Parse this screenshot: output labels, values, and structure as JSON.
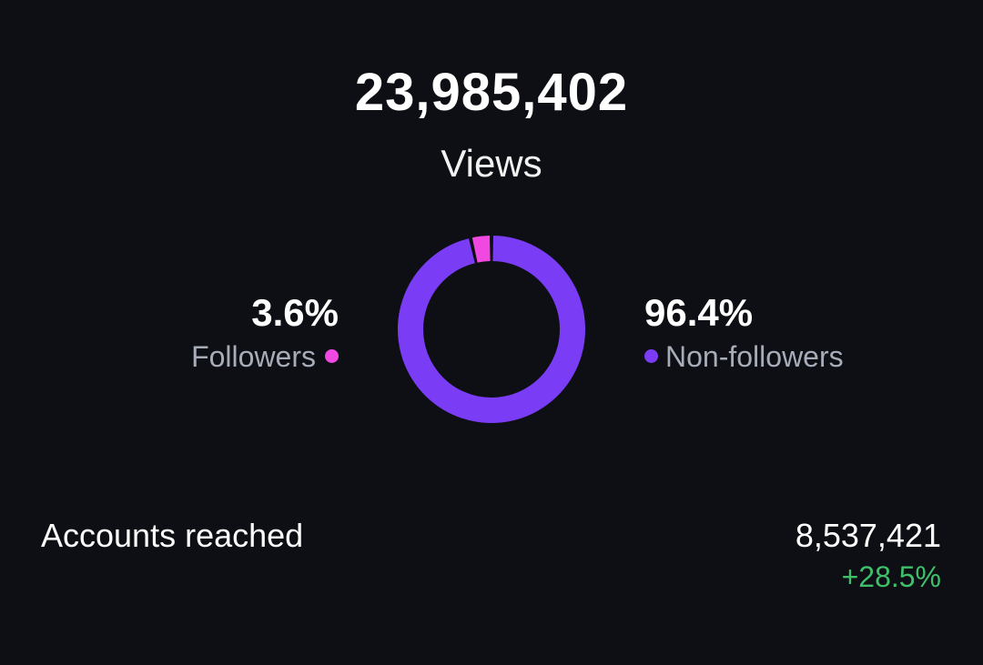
{
  "views": {
    "total": "23,985,402",
    "label": "Views"
  },
  "breakdown": {
    "followers": {
      "percent_text": "3.6%",
      "label": "Followers",
      "value": 3.6,
      "color": "#f048e0"
    },
    "non_followers": {
      "percent_text": "96.4%",
      "label": "Non-followers",
      "value": 96.4,
      "color": "#7b3cf5"
    }
  },
  "accounts_reached": {
    "label": "Accounts reached",
    "value": "8,537,421",
    "change": "+28.5%",
    "change_color": "#3fbf6a"
  },
  "colors": {
    "background": "#0d0f14",
    "primary_text": "#ffffff",
    "secondary_text": "#a6acb8"
  }
}
